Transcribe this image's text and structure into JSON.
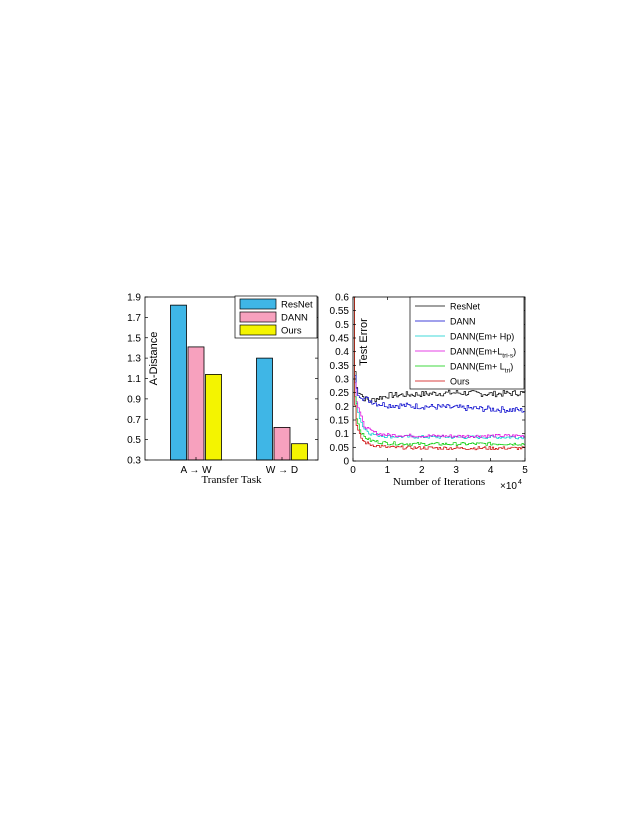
{
  "chart_data": [
    {
      "type": "bar",
      "title": "",
      "xlabel": "Transfer Task",
      "ylabel": "A-Distance",
      "categories": [
        "A → W",
        "W → D"
      ],
      "ylim": [
        0.3,
        1.9
      ],
      "yticks": [
        "0.3",
        "0.5",
        "0.7",
        "0.9",
        "1.1",
        "1.3",
        "1.5",
        "1.7",
        "1.9"
      ],
      "legend_position": "top-right",
      "grid": false,
      "series": [
        {
          "name": "ResNet",
          "color": "#3fb6e6",
          "values": [
            1.82,
            1.3
          ]
        },
        {
          "name": "DANN",
          "color": "#f7a1be",
          "values": [
            1.41,
            0.62
          ]
        },
        {
          "name": "Ours",
          "color": "#f4f400",
          "values": [
            1.14,
            0.46
          ]
        }
      ]
    },
    {
      "type": "line",
      "title": "",
      "xlabel": "Number of Iterations",
      "ylabel": "Test Error",
      "x_multiplier": "×10",
      "x_multiplier_exp": "4",
      "xlim": [
        0,
        5
      ],
      "ylim": [
        0,
        0.6
      ],
      "xticks": [
        "0",
        "1",
        "2",
        "3",
        "4",
        "5"
      ],
      "yticks": [
        "0",
        "0.05",
        "0.1",
        "0.15",
        "0.2",
        "0.25",
        "0.3",
        "0.35",
        "0.4",
        "0.45",
        "0.5",
        "0.55",
        "0.6"
      ],
      "legend_position": "top-right",
      "grid": false,
      "series": [
        {
          "name": "ResNet",
          "name_sub": "",
          "name_tail": "",
          "color": "#000000",
          "start": 0.6,
          "plateau": 0.245,
          "x": [
            0,
            0.05,
            0.1,
            0.2,
            0.3,
            0.5,
            0.7,
            1,
            2,
            3,
            4,
            5
          ],
          "y": [
            0.6,
            0.3,
            0.26,
            0.25,
            0.23,
            0.22,
            0.23,
            0.24,
            0.245,
            0.25,
            0.245,
            0.25
          ]
        },
        {
          "name": "DANN",
          "name_sub": "",
          "name_tail": "",
          "color": "#0000cc",
          "x": [
            0,
            0.05,
            0.1,
            0.2,
            0.3,
            0.5,
            0.7,
            1,
            2,
            3,
            4,
            5
          ],
          "y": [
            0.6,
            0.29,
            0.25,
            0.24,
            0.23,
            0.22,
            0.21,
            0.205,
            0.2,
            0.195,
            0.19,
            0.185
          ]
        },
        {
          "name": "DANN(Em+ Hp)",
          "name_sub": "",
          "name_tail": "",
          "color": "#00cccc",
          "x": [
            0,
            0.05,
            0.1,
            0.2,
            0.3,
            0.5,
            0.7,
            1,
            2,
            3,
            4,
            5
          ],
          "y": [
            0.6,
            0.25,
            0.2,
            0.15,
            0.12,
            0.1,
            0.095,
            0.09,
            0.088,
            0.087,
            0.087,
            0.087
          ]
        },
        {
          "name": "DANN(Em+L",
          "name_sub": "tri-s",
          "name_tail": ")",
          "color": "#dd00dd",
          "x": [
            0,
            0.05,
            0.1,
            0.2,
            0.3,
            0.5,
            0.7,
            1,
            2,
            3,
            4,
            5
          ],
          "y": [
            0.6,
            0.26,
            0.21,
            0.17,
            0.13,
            0.11,
            0.1,
            0.095,
            0.092,
            0.091,
            0.092,
            0.092
          ]
        },
        {
          "name": "DANN(Em+ L",
          "name_sub": "tri",
          "name_tail": ")",
          "color": "#00cc00",
          "x": [
            0,
            0.05,
            0.1,
            0.2,
            0.3,
            0.5,
            0.7,
            1,
            2,
            3,
            4,
            5
          ],
          "y": [
            0.6,
            0.2,
            0.15,
            0.11,
            0.09,
            0.075,
            0.07,
            0.065,
            0.062,
            0.062,
            0.063,
            0.063
          ]
        },
        {
          "name": "Ours",
          "name_sub": "",
          "name_tail": "",
          "color": "#cc0000",
          "x": [
            0,
            0.05,
            0.1,
            0.2,
            0.3,
            0.5,
            0.7,
            1,
            2,
            3,
            4,
            5
          ],
          "y": [
            0.6,
            0.17,
            0.12,
            0.09,
            0.07,
            0.06,
            0.055,
            0.05,
            0.048,
            0.047,
            0.047,
            0.047
          ]
        }
      ]
    }
  ]
}
